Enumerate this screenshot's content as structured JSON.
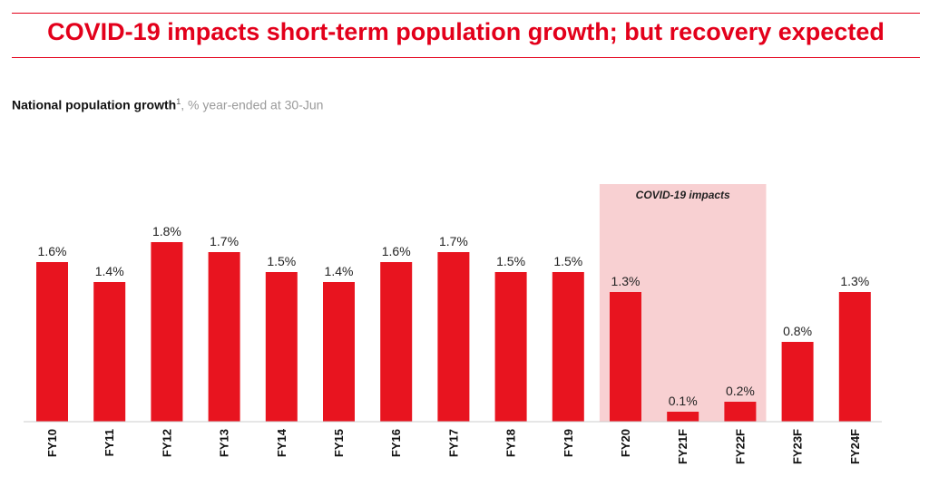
{
  "header": {
    "title": "COVID-19 impacts short-term population growth; but recovery expected",
    "subtitle_bold": "National population growth",
    "subtitle_sup": "1",
    "subtitle_rest": ", % year-ended at 30-Jun"
  },
  "colors": {
    "accent": "#e3001b",
    "bar": "#e8141f",
    "highlight": "#f8d0d2"
  },
  "chart_data": {
    "type": "bar",
    "categories": [
      "FY10",
      "FY11",
      "FY12",
      "FY13",
      "FY14",
      "FY15",
      "FY16",
      "FY17",
      "FY18",
      "FY19",
      "FY20",
      "FY21F",
      "FY22F",
      "FY23F",
      "FY24F"
    ],
    "values": [
      1.6,
      1.4,
      1.8,
      1.7,
      1.5,
      1.4,
      1.6,
      1.7,
      1.5,
      1.5,
      1.3,
      0.1,
      0.2,
      0.8,
      1.3
    ],
    "value_labels": [
      "1.6%",
      "1.4%",
      "1.8%",
      "1.7%",
      "1.5%",
      "1.4%",
      "1.6%",
      "1.7%",
      "1.5%",
      "1.5%",
      "1.3%",
      "0.1%",
      "0.2%",
      "0.8%",
      "1.3%"
    ],
    "ylim": [
      0,
      2.0
    ],
    "grid": false,
    "highlight": {
      "label": "COVID-19 impacts",
      "categories": [
        "FY20",
        "FY21F",
        "FY22F"
      ]
    }
  }
}
